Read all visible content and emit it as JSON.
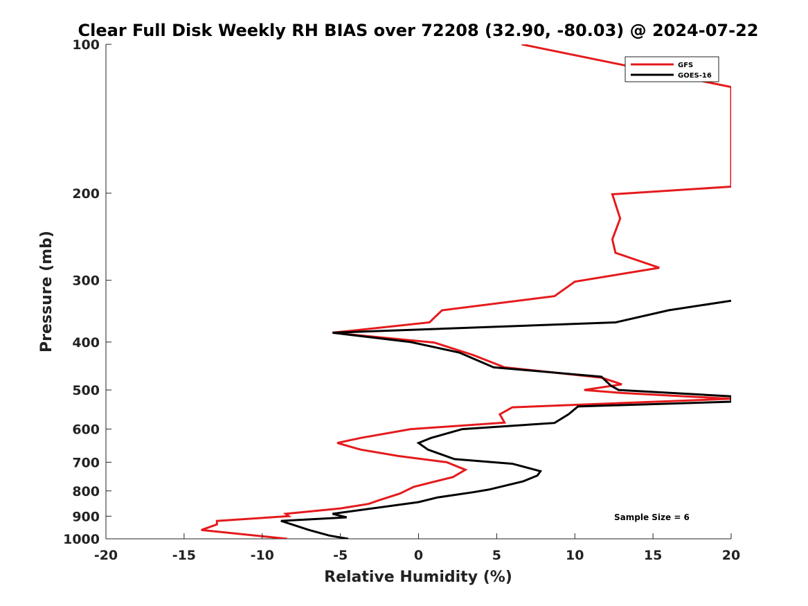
{
  "chart_data": {
    "type": "line",
    "title": "Clear Full Disk Weekly RH BIAS over 72208 (32.90, -80.03) @ 2024-07-22",
    "xlabel": "Relative Humidity (%)",
    "ylabel": "Pressure (mb)",
    "xlim": [
      -20,
      20
    ],
    "ylim": [
      100,
      1000
    ],
    "y_scale": "log",
    "y_reversed": true,
    "x_ticks": [
      "-20",
      "-15",
      "-10",
      "-5",
      "0",
      "5",
      "10",
      "15",
      "20"
    ],
    "y_ticks": [
      "100",
      "200",
      "300",
      "400",
      "500",
      "600",
      "700",
      "800",
      "900",
      "1000"
    ],
    "grid": false,
    "legend_position": "top-right",
    "annotation": "Sample Size = 6",
    "series": [
      {
        "name": "GFS",
        "color": "#e41a1c",
        "points": [
          [
            6.6,
            100
          ],
          [
            16,
            115
          ],
          [
            20,
            122
          ],
          [
            20,
            194
          ],
          [
            12.4,
            201
          ],
          [
            12.9,
            225
          ],
          [
            12.4,
            248
          ],
          [
            12.6,
            264
          ],
          [
            15.4,
            283
          ],
          [
            10,
            302
          ],
          [
            8.7,
            323
          ],
          [
            1.5,
            345
          ],
          [
            0.7,
            365
          ],
          [
            -5.5,
            383
          ],
          [
            1,
            401
          ],
          [
            3.5,
            425
          ],
          [
            5.5,
            450
          ],
          [
            11.7,
            472
          ],
          [
            13,
            487
          ],
          [
            10.6,
            500
          ],
          [
            13,
            507
          ],
          [
            20,
            521
          ],
          [
            6,
            542
          ],
          [
            5.2,
            560
          ],
          [
            5.5,
            582
          ],
          [
            -0.5,
            600
          ],
          [
            -3.7,
            625
          ],
          [
            -5.2,
            640
          ],
          [
            -3.7,
            660
          ],
          [
            -1.3,
            680
          ],
          [
            1.8,
            700
          ],
          [
            3,
            725
          ],
          [
            2.2,
            750
          ],
          [
            -0.3,
            785
          ],
          [
            -1.2,
            810
          ],
          [
            -2.5,
            835
          ],
          [
            -3.2,
            850
          ],
          [
            -5,
            868
          ],
          [
            -8.5,
            890
          ],
          [
            -8.3,
            900
          ],
          [
            -12.9,
            920
          ],
          [
            -12.9,
            935
          ],
          [
            -13.9,
            960
          ],
          [
            -8.4,
            1000
          ]
        ]
      },
      {
        "name": "GOES-16",
        "color": "#000000",
        "points": [
          [
            20,
            330
          ],
          [
            16,
            345
          ],
          [
            12.6,
            365
          ],
          [
            -5.5,
            383
          ],
          [
            -0.5,
            400
          ],
          [
            2.6,
            420
          ],
          [
            4.8,
            450
          ],
          [
            11.7,
            470
          ],
          [
            12.3,
            490
          ],
          [
            12.8,
            500
          ],
          [
            20,
            515
          ],
          [
            20,
            528
          ],
          [
            10.2,
            540
          ],
          [
            9.6,
            560
          ],
          [
            8.7,
            583
          ],
          [
            2.8,
            600
          ],
          [
            0.8,
            625
          ],
          [
            0,
            640
          ],
          [
            0.6,
            660
          ],
          [
            2.3,
            690
          ],
          [
            6,
            705
          ],
          [
            7.8,
            730
          ],
          [
            7.6,
            745
          ],
          [
            6.7,
            765
          ],
          [
            4.5,
            795
          ],
          [
            3.5,
            805
          ],
          [
            1.2,
            825
          ],
          [
            0,
            843
          ],
          [
            -5.5,
            890
          ],
          [
            -4.6,
            905
          ],
          [
            -8.8,
            920
          ],
          [
            -7,
            960
          ],
          [
            -5.7,
            985
          ],
          [
            -4.5,
            1000
          ]
        ]
      }
    ]
  }
}
